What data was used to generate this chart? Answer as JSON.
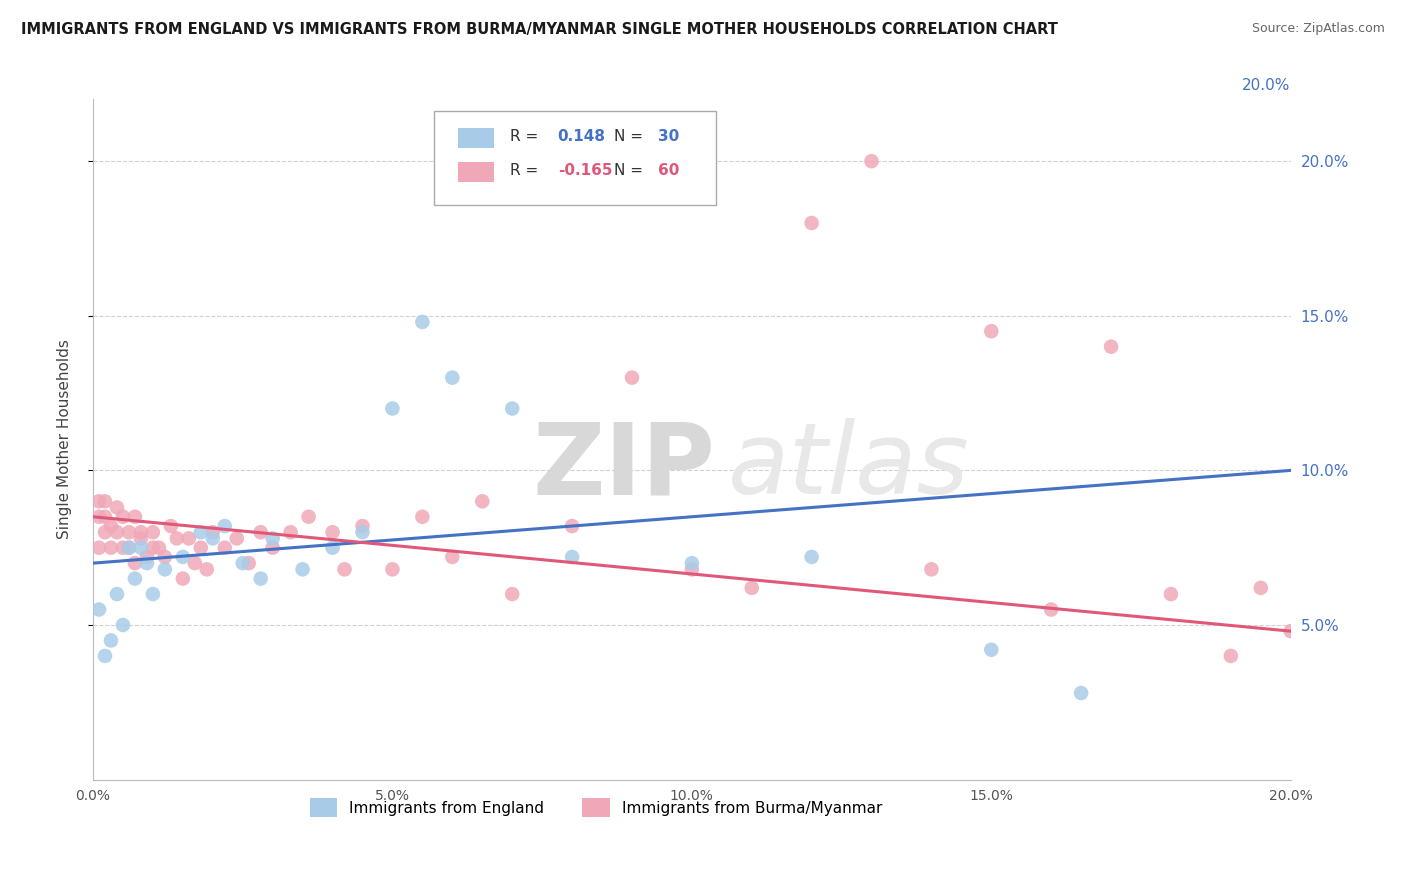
{
  "title": "IMMIGRANTS FROM ENGLAND VS IMMIGRANTS FROM BURMA/MYANMAR SINGLE MOTHER HOUSEHOLDS CORRELATION CHART",
  "source": "Source: ZipAtlas.com",
  "ylabel": "Single Mother Households",
  "legend_label_england": "Immigrants from England",
  "legend_label_burma": "Immigrants from Burma/Myanmar",
  "xlim": [
    0.0,
    0.2
  ],
  "ylim": [
    0.0,
    0.22
  ],
  "yticks": [
    0.05,
    0.1,
    0.15,
    0.2
  ],
  "ytick_labels": [
    "5.0%",
    "10.0%",
    "15.0%",
    "20.0%"
  ],
  "xticks": [
    0.0,
    0.05,
    0.1,
    0.15,
    0.2
  ],
  "xtick_labels": [
    "0.0%",
    "5.0%",
    "10.0%",
    "15.0%",
    "20.0%"
  ],
  "color_england": "#a8cce8",
  "color_burma": "#f0a8b8",
  "line_color_england": "#4472C4",
  "line_color_burma": "#e05878",
  "r_england": 0.148,
  "n_england": 30,
  "r_burma": -0.165,
  "n_burma": 60,
  "watermark_zip": "ZIP",
  "watermark_atlas": "atlas",
  "england_x": [
    0.001,
    0.002,
    0.003,
    0.004,
    0.005,
    0.006,
    0.007,
    0.008,
    0.009,
    0.01,
    0.012,
    0.015,
    0.018,
    0.02,
    0.022,
    0.025,
    0.028,
    0.03,
    0.035,
    0.04,
    0.045,
    0.05,
    0.055,
    0.06,
    0.07,
    0.08,
    0.1,
    0.12,
    0.15,
    0.165
  ],
  "england_y": [
    0.055,
    0.04,
    0.045,
    0.06,
    0.05,
    0.075,
    0.065,
    0.075,
    0.07,
    0.06,
    0.068,
    0.072,
    0.08,
    0.078,
    0.082,
    0.07,
    0.065,
    0.078,
    0.068,
    0.075,
    0.08,
    0.12,
    0.148,
    0.13,
    0.12,
    0.072,
    0.07,
    0.072,
    0.042,
    0.028
  ],
  "burma_x": [
    0.001,
    0.001,
    0.001,
    0.002,
    0.002,
    0.002,
    0.003,
    0.003,
    0.004,
    0.004,
    0.005,
    0.005,
    0.006,
    0.006,
    0.007,
    0.007,
    0.008,
    0.008,
    0.009,
    0.01,
    0.01,
    0.011,
    0.012,
    0.013,
    0.014,
    0.015,
    0.016,
    0.017,
    0.018,
    0.019,
    0.02,
    0.022,
    0.024,
    0.026,
    0.028,
    0.03,
    0.033,
    0.036,
    0.04,
    0.042,
    0.045,
    0.05,
    0.055,
    0.06,
    0.065,
    0.07,
    0.08,
    0.09,
    0.1,
    0.11,
    0.12,
    0.13,
    0.14,
    0.15,
    0.16,
    0.17,
    0.18,
    0.19,
    0.195,
    0.2
  ],
  "burma_y": [
    0.085,
    0.075,
    0.09,
    0.08,
    0.09,
    0.085,
    0.075,
    0.082,
    0.08,
    0.088,
    0.075,
    0.085,
    0.08,
    0.075,
    0.085,
    0.07,
    0.078,
    0.08,
    0.072,
    0.075,
    0.08,
    0.075,
    0.072,
    0.082,
    0.078,
    0.065,
    0.078,
    0.07,
    0.075,
    0.068,
    0.08,
    0.075,
    0.078,
    0.07,
    0.08,
    0.075,
    0.08,
    0.085,
    0.08,
    0.068,
    0.082,
    0.068,
    0.085,
    0.072,
    0.09,
    0.06,
    0.082,
    0.13,
    0.068,
    0.062,
    0.18,
    0.2,
    0.068,
    0.145,
    0.055,
    0.14,
    0.06,
    0.04,
    0.062,
    0.048
  ]
}
